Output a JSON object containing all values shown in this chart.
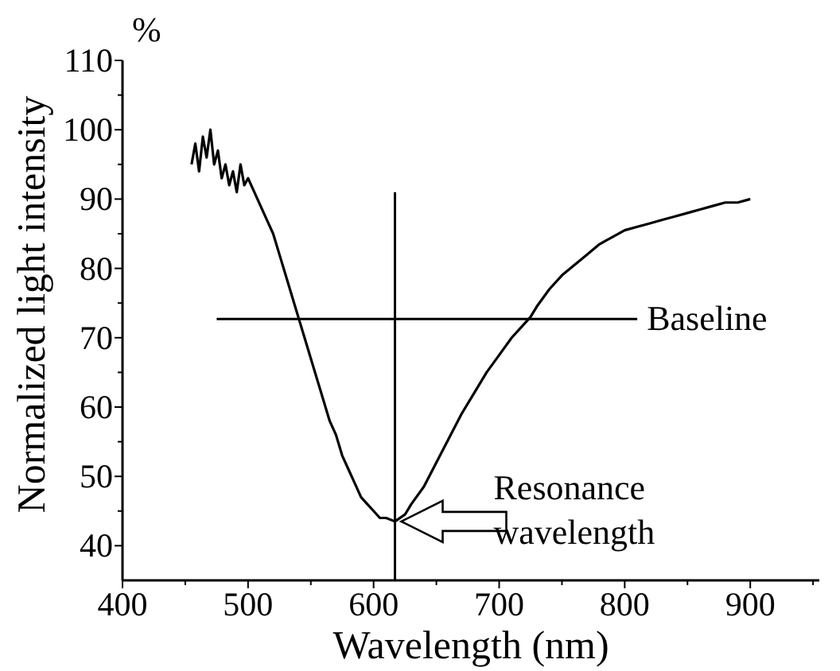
{
  "chart_data": {
    "type": "line",
    "xlabel": "Wavelength (nm)",
    "ylabel": "Normalized light intensity",
    "x": [
      455,
      458,
      461,
      464,
      467,
      470,
      473,
      476,
      479,
      482,
      485,
      488,
      491,
      494,
      497,
      500,
      505,
      510,
      515,
      520,
      525,
      530,
      535,
      540,
      545,
      550,
      555,
      560,
      565,
      570,
      575,
      580,
      585,
      590,
      595,
      600,
      605,
      610,
      617,
      625,
      630,
      640,
      650,
      660,
      670,
      680,
      690,
      700,
      710,
      720,
      725,
      730,
      740,
      750,
      760,
      770,
      780,
      790,
      800,
      810,
      820,
      830,
      840,
      850,
      860,
      870,
      880,
      890,
      900
    ],
    "series": [
      {
        "color": "#000000",
        "values": [
          95,
          98,
          94,
          99,
          96,
          100,
          95,
          97,
          93,
          95,
          92,
          94,
          91,
          95,
          92,
          93,
          91,
          89,
          87,
          85,
          82,
          79,
          76,
          73,
          70,
          67,
          64,
          61,
          58,
          56,
          53,
          51,
          49,
          47,
          46,
          45,
          44,
          44,
          43.5,
          44.5,
          46,
          48.5,
          52,
          55.5,
          59,
          62,
          65,
          67.5,
          70,
          72,
          73,
          74.5,
          77,
          79,
          80.5,
          82,
          83.5,
          84.5,
          85.5,
          86,
          86.5,
          87,
          87.5,
          88,
          88.5,
          89,
          89.5,
          89.5,
          90
        ]
      }
    ],
    "xlim": [
      400,
      955
    ],
    "xticks": [
      400,
      {
        "value": 450,
        "label": null
      },
      500,
      {
        "value": 550,
        "label": null
      },
      600,
      {
        "value": 650,
        "label": null
      },
      700,
      {
        "value": 750,
        "label": null
      },
      800,
      {
        "value": 850,
        "label": null
      },
      900,
      {
        "value": 950,
        "label": null
      }
    ],
    "ylim": [
      35,
      110
    ],
    "yticks": [
      40,
      {
        "value": 45,
        "label": null
      },
      50,
      {
        "value": 55,
        "label": null
      },
      60,
      {
        "value": 65,
        "label": null
      },
      70,
      {
        "value": 75,
        "label": null
      },
      80,
      {
        "value": 85,
        "label": null
      },
      90,
      {
        "value": 95,
        "label": null
      },
      100,
      {
        "value": 105,
        "label": null
      },
      110
    ],
    "grid": false,
    "marker": "none",
    "line_style": "solid",
    "ref_lines": [
      {
        "axis": "y",
        "value": 72.7,
        "label": "Baseline",
        "color": "#000000"
      },
      {
        "axis": "x",
        "value": 617,
        "color": "#000000"
      }
    ],
    "annotations": [
      "%",
      {
        "text": "Resonance wavelength",
        "x": 617,
        "y": 43.5
      }
    ]
  }
}
